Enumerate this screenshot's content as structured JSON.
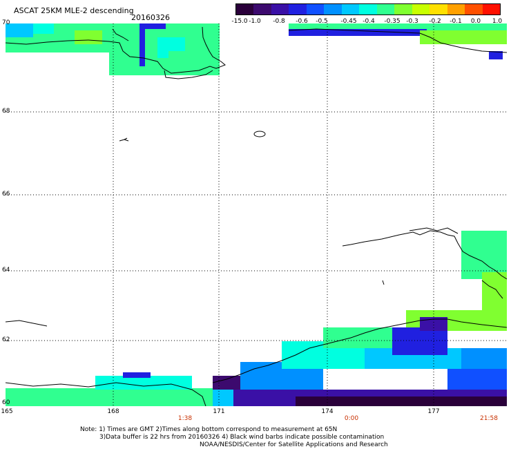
{
  "title": "ASCAT 25KM MLE-2 descending",
  "date": "20160326",
  "colorbar": {
    "labels": [
      "-15.0",
      "-1.0",
      "-0.8",
      "-0.6",
      "-0.5",
      "-0.45",
      "-0.4",
      "-0.35",
      "-0.3",
      "-0.2",
      "-0.1",
      "0.0",
      "1.0"
    ],
    "colors": [
      "#2a003a",
      "#3c0a6e",
      "#3a10a6",
      "#2020e0",
      "#1050ff",
      "#0090ff",
      "#00c8ff",
      "#00ffe0",
      "#30ff90",
      "#80ff30",
      "#c8ff00",
      "#ffe000",
      "#ffa000",
      "#ff5000",
      "#ff1000"
    ]
  },
  "lat_labels": [
    "70",
    "68",
    "66",
    "64",
    "62",
    "60"
  ],
  "lon_labels": [
    "165",
    "168",
    "171",
    "174",
    "177"
  ],
  "time_labels": [
    "1:38",
    "0:00",
    "21:58"
  ],
  "notes": {
    "line1": "Note: 1) Times are GMT 2)Times along bottom correspond to measurement at 65N",
    "line2": "3)Data buffer is 22 hrs from 20160326 4) Black wind barbs indicate possible contamination",
    "line3": "NOAA/NESDIS/Center for Satellite Applications and Research"
  }
}
